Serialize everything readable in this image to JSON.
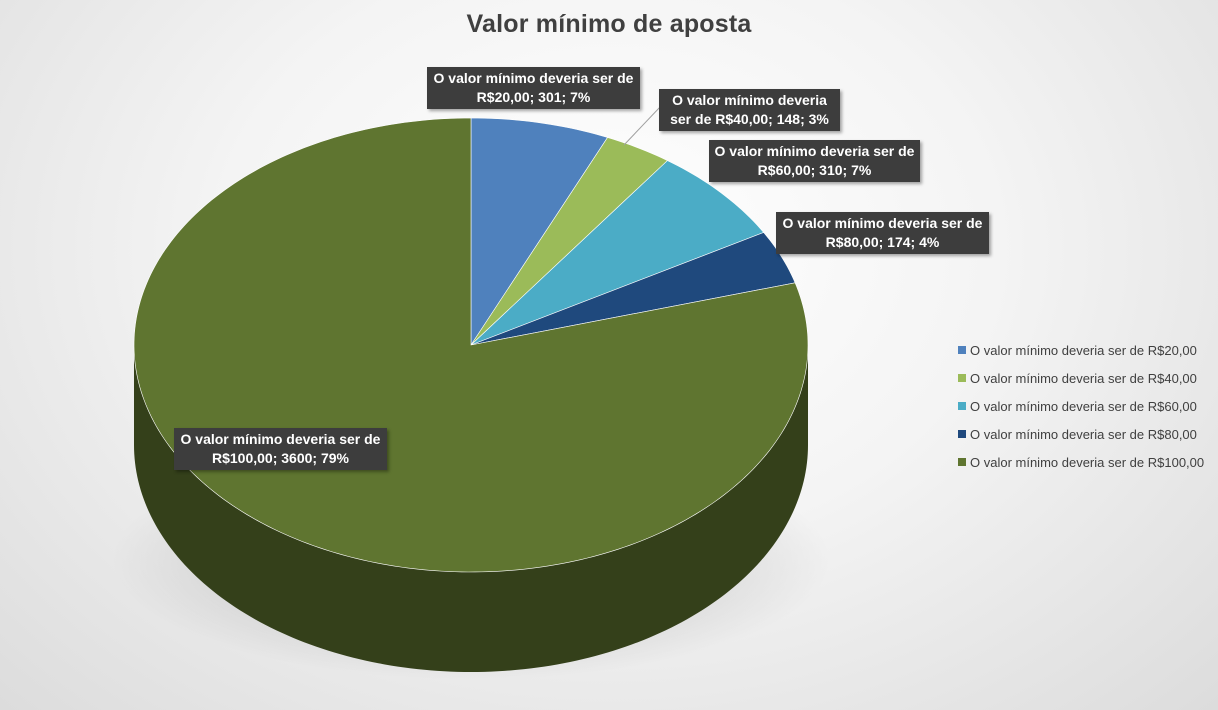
{
  "chart_data": {
    "type": "pie",
    "title": "Valor mínimo de aposta",
    "three_d": true,
    "legend_position": "right",
    "slices": [
      {
        "label": "O valor mínimo deveria ser de R$20,00",
        "value": 301,
        "percent": "7%",
        "color": "#4f81bd",
        "data_label": [
          "O valor mínimo deveria ser de",
          "R$20,00; 301; 7%"
        ]
      },
      {
        "label": "O valor mínimo deveria ser de R$40,00",
        "value": 148,
        "percent": "3%",
        "color": "#9bbb59",
        "data_label": [
          "O valor mínimo deveria",
          "ser de R$40,00; 148; 3%"
        ]
      },
      {
        "label": "O valor mínimo deveria ser de R$60,00",
        "value": 310,
        "percent": "7%",
        "color": "#4bacc6",
        "data_label": [
          "O valor mínimo deveria ser de",
          "R$60,00; 310; 7%"
        ]
      },
      {
        "label": "O valor mínimo deveria ser de R$80,00",
        "value": 174,
        "percent": "4%",
        "color": "#1f497d",
        "data_label": [
          "O valor mínimo deveria ser de",
          "R$80,00; 174; 4%"
        ]
      },
      {
        "label": "O valor mínimo deveria ser de R$100,00",
        "value": 3600,
        "percent": "79%",
        "color": "#5f7530",
        "data_label": [
          "O valor mínimo deveria ser de",
          "R$100,00; 3600; 79%"
        ]
      }
    ]
  }
}
